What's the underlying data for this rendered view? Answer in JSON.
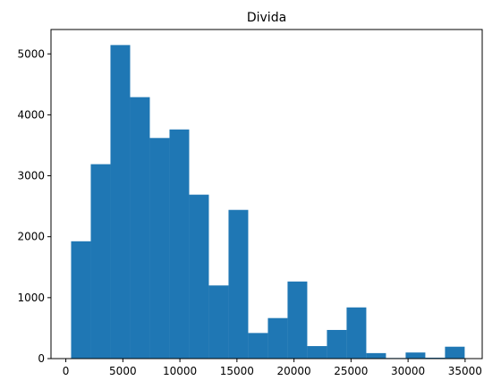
{
  "chart_data": {
    "type": "histogram",
    "title": "Divida",
    "xlabel": "",
    "ylabel": "",
    "xlim": [
      -1300,
      36500
    ],
    "ylim": [
      0,
      5400
    ],
    "grid": false,
    "bar_color": "#1f77b4",
    "bins": [
      {
        "x0": 463,
        "x1": 2188,
        "count": 1925
      },
      {
        "x0": 2188,
        "x1": 3913,
        "count": 3190
      },
      {
        "x0": 3913,
        "x1": 5638,
        "count": 5145
      },
      {
        "x0": 5638,
        "x1": 7363,
        "count": 4290
      },
      {
        "x0": 7363,
        "x1": 9088,
        "count": 3620
      },
      {
        "x0": 9088,
        "x1": 10813,
        "count": 3760
      },
      {
        "x0": 10813,
        "x1": 12538,
        "count": 2690
      },
      {
        "x0": 12538,
        "x1": 14263,
        "count": 1200
      },
      {
        "x0": 14263,
        "x1": 15988,
        "count": 2440
      },
      {
        "x0": 15988,
        "x1": 17713,
        "count": 420
      },
      {
        "x0": 17713,
        "x1": 19438,
        "count": 665
      },
      {
        "x0": 19438,
        "x1": 21163,
        "count": 1265
      },
      {
        "x0": 21163,
        "x1": 22888,
        "count": 205
      },
      {
        "x0": 22888,
        "x1": 24613,
        "count": 470
      },
      {
        "x0": 24613,
        "x1": 26338,
        "count": 840
      },
      {
        "x0": 26338,
        "x1": 28063,
        "count": 90
      },
      {
        "x0": 28063,
        "x1": 29788,
        "count": 10
      },
      {
        "x0": 29788,
        "x1": 31513,
        "count": 100
      },
      {
        "x0": 31513,
        "x1": 33238,
        "count": 15
      },
      {
        "x0": 33238,
        "x1": 34963,
        "count": 195
      }
    ],
    "x_ticks": [
      {
        "value": 0,
        "label": "0"
      },
      {
        "value": 5000,
        "label": "5000"
      },
      {
        "value": 10000,
        "label": "10000"
      },
      {
        "value": 15000,
        "label": "15000"
      },
      {
        "value": 20000,
        "label": "20000"
      },
      {
        "value": 25000,
        "label": "25000"
      },
      {
        "value": 30000,
        "label": "30000"
      },
      {
        "value": 35000,
        "label": "35000"
      }
    ],
    "y_ticks": [
      {
        "value": 0,
        "label": "0"
      },
      {
        "value": 1000,
        "label": "1000"
      },
      {
        "value": 2000,
        "label": "2000"
      },
      {
        "value": 3000,
        "label": "3000"
      },
      {
        "value": 4000,
        "label": "4000"
      },
      {
        "value": 5000,
        "label": "5000"
      }
    ]
  }
}
